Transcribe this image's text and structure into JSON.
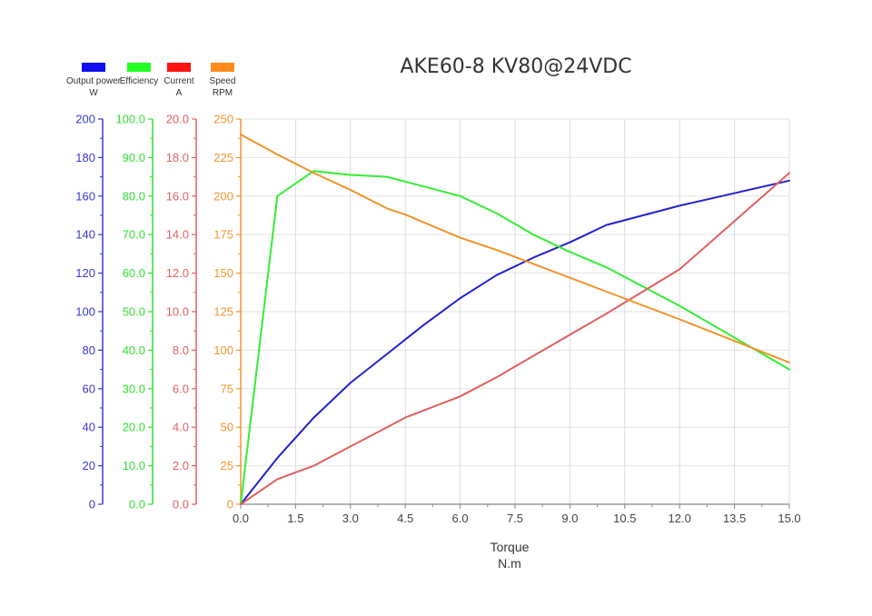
{
  "chart_data": {
    "type": "line",
    "title": "AKE60-8 KV80@24VDC",
    "xlabel": "Torque",
    "xunit": "N.m",
    "xlim": [
      0,
      15
    ],
    "x_ticks": [
      "0.0",
      "1.5",
      "3.0",
      "4.5",
      "6.0",
      "7.5",
      "9.0",
      "10.5",
      "12.0",
      "13.5",
      "15.0"
    ],
    "grid": true,
    "legend_position": "top-left",
    "axes": [
      {
        "id": "power",
        "color": "#3a3acc",
        "ylim": [
          0,
          200
        ],
        "ticks": [
          "0",
          "20",
          "40",
          "60",
          "80",
          "100",
          "120",
          "140",
          "160",
          "180",
          "200"
        ]
      },
      {
        "id": "efficiency",
        "color": "#33dd33",
        "ylim": [
          0,
          100
        ],
        "ticks": [
          "0.0",
          "10.0",
          "20.0",
          "30.0",
          "40.0",
          "50.0",
          "60.0",
          "70.0",
          "80.0",
          "90.0",
          "100.0"
        ]
      },
      {
        "id": "current",
        "color": "#e06060",
        "ylim": [
          0,
          20
        ],
        "ticks": [
          "0.0",
          "2.0",
          "4.0",
          "6.0",
          "8.0",
          "10.0",
          "12.0",
          "14.0",
          "16.0",
          "18.0",
          "20.0"
        ]
      },
      {
        "id": "speed",
        "color": "#f0962e",
        "ylim": [
          0,
          250
        ],
        "ticks": [
          "0",
          "25",
          "50",
          "75",
          "100",
          "125",
          "150",
          "175",
          "200",
          "225",
          "250"
        ]
      }
    ],
    "series": [
      {
        "name": "Output power",
        "unit": "W",
        "axis": "power",
        "color": "#2222cc",
        "legend_color": "#1010ee",
        "x": [
          0,
          1,
          2,
          3,
          4,
          5,
          6,
          7,
          8,
          9,
          10,
          12,
          15
        ],
        "values": [
          0,
          24,
          45,
          63,
          78,
          93,
          107,
          119,
          128,
          136,
          145,
          155,
          168
        ]
      },
      {
        "name": "Efficiency",
        "unit": "",
        "axis": "efficiency",
        "color": "#33ee33",
        "legend_color": "#22ff22",
        "x": [
          0,
          1,
          2,
          3,
          4,
          5,
          6,
          7,
          8,
          9,
          10,
          12,
          15
        ],
        "values": [
          0,
          80,
          86.5,
          85.5,
          85,
          82.5,
          80,
          75.5,
          70,
          65.5,
          61.5,
          51.5,
          35
        ]
      },
      {
        "name": "Current",
        "unit": "A",
        "axis": "current",
        "color": "#e06060",
        "legend_color": "#ff1111",
        "x": [
          0,
          1,
          2,
          3,
          4,
          4.5,
          6,
          7,
          8,
          10,
          12,
          15
        ],
        "values": [
          0,
          1.3,
          2.0,
          3.0,
          4.0,
          4.5,
          5.6,
          6.6,
          7.7,
          9.9,
          12.2,
          17.2
        ]
      },
      {
        "name": "Speed",
        "unit": "RPM",
        "axis": "speed",
        "color": "#f0922a",
        "legend_color": "#ff8c1a",
        "x": [
          0,
          1,
          2,
          3,
          4,
          4.5,
          6,
          7,
          8,
          10,
          12,
          15
        ],
        "values": [
          240,
          227,
          215,
          204,
          192,
          188,
          173,
          165,
          156,
          138,
          120,
          92
        ]
      }
    ]
  }
}
